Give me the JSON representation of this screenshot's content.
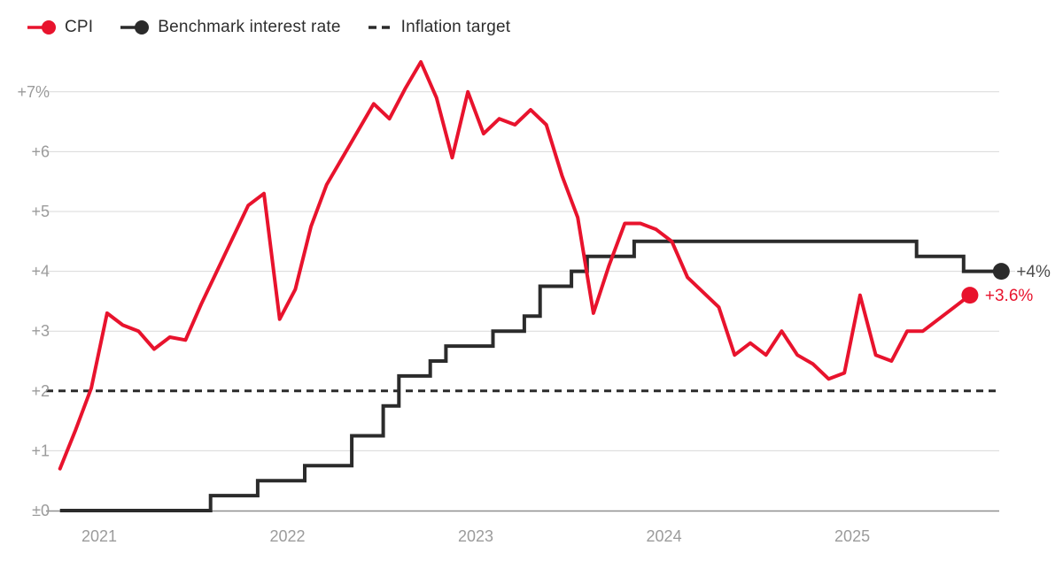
{
  "chart_data": {
    "type": "line",
    "title": "",
    "unit": "%",
    "legend": [
      {
        "label": "CPI",
        "color": "#e8132d",
        "glyph": "line-dot"
      },
      {
        "label": "Benchmark interest rate",
        "color": "#2b2b2b",
        "glyph": "line-dot"
      },
      {
        "label": "Inflation target",
        "color": "#2b2b2b",
        "glyph": "dashed-line"
      }
    ],
    "x_tick_labels": [
      "2021",
      "2022",
      "2023",
      "2024",
      "2025"
    ],
    "y_ticks": [
      {
        "label": "+7%",
        "value": 7
      },
      {
        "label": "+6",
        "value": 6
      },
      {
        "label": "+5",
        "value": 5
      },
      {
        "label": "+4",
        "value": 4
      },
      {
        "label": "+3",
        "value": 3
      },
      {
        "label": "+2",
        "value": 2
      },
      {
        "label": "+1",
        "value": 1
      },
      {
        "label": "±0",
        "value": 0
      }
    ],
    "ylim": [
      0,
      7.5
    ],
    "grid": "horizontal",
    "target_line": {
      "name": "Inflation target",
      "value": 2,
      "color": "#2b2b2b"
    },
    "series": [
      {
        "name": "CPI",
        "style": "line",
        "color": "#e8132d",
        "start_month": "2020-10",
        "values": [
          0.7,
          1.35,
          2.05,
          3.3,
          3.1,
          3.0,
          2.7,
          2.9,
          2.85,
          3.45,
          4.0,
          4.55,
          5.1,
          5.3,
          3.2,
          3.7,
          4.75,
          5.45,
          5.9,
          6.35,
          6.8,
          6.55,
          7.05,
          7.5,
          6.9,
          5.9,
          7.0,
          6.3,
          6.55,
          6.45,
          6.7,
          6.45,
          5.6,
          4.9,
          3.3,
          4.1,
          4.8,
          4.8,
          4.7,
          4.5,
          3.9,
          3.65,
          3.4,
          2.6,
          2.8,
          2.6,
          3.0,
          2.6,
          2.45,
          2.2,
          2.3,
          3.6,
          2.6,
          2.5,
          3.0,
          3.0,
          3.2,
          3.4,
          3.6
        ],
        "end_label": "+3.6%",
        "end_label_color": "#e8132d"
      },
      {
        "name": "Benchmark interest rate",
        "style": "step",
        "color": "#2b2b2b",
        "steps": [
          [
            "2020-10",
            0
          ],
          [
            "2021-08",
            0.25
          ],
          [
            "2021-11",
            0.5
          ],
          [
            "2022-02",
            0.75
          ],
          [
            "2022-05",
            1.25
          ],
          [
            "2022-07",
            1.75
          ],
          [
            "2022-08",
            2.25
          ],
          [
            "2022-10",
            2.5
          ],
          [
            "2022-11",
            2.75
          ],
          [
            "2023-02",
            3.0
          ],
          [
            "2023-04",
            3.25
          ],
          [
            "2023-05",
            3.75
          ],
          [
            "2023-07",
            4.0
          ],
          [
            "2023-08",
            4.25
          ],
          [
            "2023-11",
            4.5
          ],
          [
            "2025-05",
            4.25
          ],
          [
            "2025-08",
            4.0
          ]
        ],
        "end_month": "2025-10",
        "end_label": "+4%",
        "end_label_color": "#4d4d4d"
      }
    ],
    "colors": {
      "gridline": "#d9d9d9",
      "zero_axis": "#8f8f8f",
      "tick_label": "#9b9b9b",
      "legend_text": "#2e2e2e"
    }
  }
}
